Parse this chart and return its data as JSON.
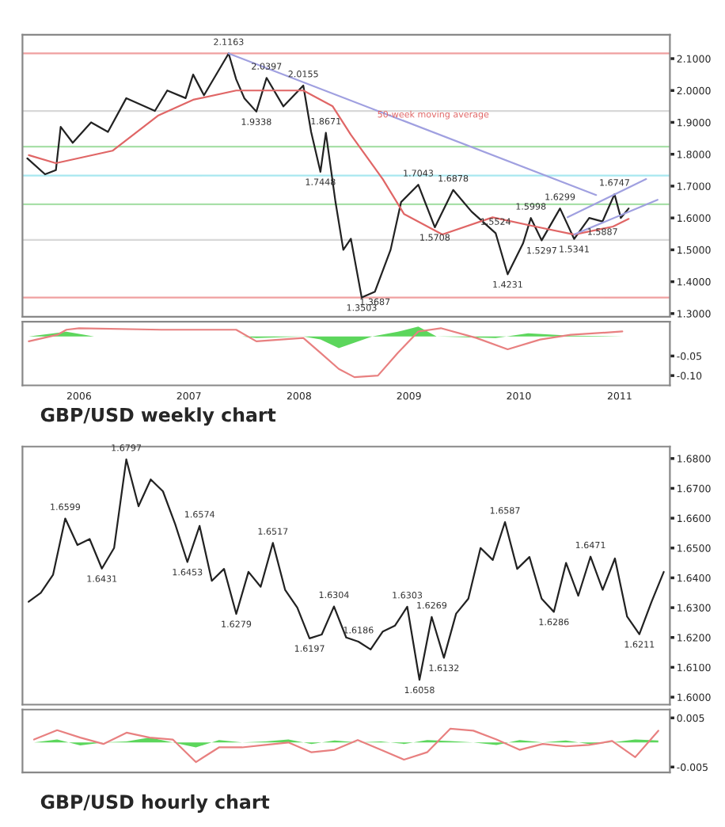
{
  "chart_data": [
    {
      "type": "line",
      "xlim": [
        "2005-12-25",
        "2011-11-15"
      ],
      "ylim": [
        1.29,
        2.175
      ],
      "yticks": [
        {
          "value": 1.3,
          "label": "1.3000"
        },
        {
          "value": 1.4,
          "label": "1.4000"
        },
        {
          "value": 1.5,
          "label": "1.5000"
        },
        {
          "value": 1.6,
          "label": "1.6000"
        },
        {
          "value": 1.7,
          "label": "1.7000"
        },
        {
          "value": 1.8,
          "label": "1.8000"
        },
        {
          "value": 1.9,
          "label": "1.9000"
        },
        {
          "value": 2.0,
          "label": "2.0000"
        },
        {
          "value": 2.1,
          "label": "2.1000"
        }
      ],
      "tick_labels": "y",
      "grid": false,
      "ref_lines": [
        {
          "axis": "y",
          "value": 2.1163,
          "color": "#f0a0a0"
        },
        {
          "axis": "y",
          "value": 1.9355,
          "color": "#d8d8d8"
        },
        {
          "axis": "y",
          "value": 1.8237,
          "color": "#a8e0a8"
        },
        {
          "axis": "y",
          "value": 1.7333,
          "color": "#a8e8f0"
        },
        {
          "axis": "y",
          "value": 1.6429,
          "color": "#a8e0a8"
        },
        {
          "axis": "y",
          "value": 1.5311,
          "color": "#d8d8d8"
        },
        {
          "axis": "y",
          "value": 1.3503,
          "color": "#f0a0a0"
        }
      ],
      "series": [
        {
          "color": "#222222",
          "x": [
            "2006-01-10",
            "2006-03-10",
            "2006-04-15",
            "2006-05-01",
            "2006-06-10",
            "2006-08-10",
            "2006-10-05",
            "2006-12-05",
            "2007-03-10",
            "2007-04-20",
            "2007-06-20",
            "2007-07-15",
            "2007-08-20",
            "2007-11-10",
            "2007-12-05",
            "2008-01-01",
            "2008-02-10",
            "2008-03-15",
            "2008-05-10",
            "2008-07-15",
            "2008-08-10",
            "2008-09-10",
            "2008-09-28",
            "2008-10-30",
            "2008-11-25",
            "2008-12-20",
            "2009-01-25",
            "2009-03-10",
            "2009-05-01",
            "2009-06-05",
            "2009-08-01",
            "2009-09-25",
            "2009-11-25",
            "2010-01-25",
            "2010-04-15",
            "2010-05-25",
            "2010-07-15",
            "2010-08-10",
            "2010-09-15",
            "2010-11-15",
            "2011-01-01",
            "2011-02-20",
            "2011-04-05",
            "2011-05-15",
            "2011-06-05",
            "2011-07-01"
          ],
          "values": [
            1.787,
            1.737,
            1.75,
            1.886,
            1.836,
            1.9,
            1.87,
            1.976,
            1.936,
            2.0,
            1.976,
            2.05,
            1.985,
            2.1163,
            2.035,
            1.976,
            1.9338,
            2.0397,
            1.95,
            2.0155,
            1.87,
            1.7448,
            1.8671,
            1.65,
            1.5,
            1.535,
            1.3503,
            1.3687,
            1.5,
            1.65,
            1.7043,
            1.5708,
            1.6878,
            1.62,
            1.5524,
            1.4231,
            1.52,
            1.5998,
            1.5297,
            1.6299,
            1.5341,
            1.6,
            1.5887,
            1.6747,
            1.6,
            1.63
          ]
        },
        {
          "name": "50-week moving average",
          "color": "#e06666",
          "x": [
            "2006-01-15",
            "2006-04-15",
            "2006-10-20",
            "2007-03-20",
            "2007-07-15",
            "2007-12-05",
            "2008-07-15",
            "2008-10-20",
            "2008-12-20",
            "2009-04-05",
            "2009-06-15",
            "2009-10-20",
            "2010-04-05",
            "2010-08-25",
            "2011-01-01",
            "2011-05-10",
            "2011-07-01"
          ],
          "values": [
            1.797,
            1.772,
            1.811,
            1.921,
            1.971,
            2.0,
            2.0,
            1.951,
            1.861,
            1.722,
            1.612,
            1.548,
            1.602,
            1.573,
            1.548,
            1.573,
            1.597
          ]
        },
        {
          "color": "#a0a0e0",
          "x": [
            "2007-11-10",
            "2011-03-15"
          ],
          "values": [
            2.1163,
            1.672
          ]
        },
        {
          "color": "#a0a0e0",
          "x": [
            "2010-12-10",
            "2011-08-28"
          ],
          "values": [
            1.602,
            1.722
          ]
        },
        {
          "color": "#a0a0e0",
          "x": [
            "2011-01-01",
            "2011-10-05"
          ],
          "values": [
            1.548,
            1.657
          ]
        }
      ],
      "annotations": [
        {
          "text": "2.1163",
          "x": "2007-11-10",
          "y": 2.1163
        },
        {
          "text": "1.9338",
          "x": "2008-02-10",
          "y": 1.9338
        },
        {
          "text": "2.0397",
          "x": "2008-03-15",
          "y": 2.0397
        },
        {
          "text": "2.0155",
          "x": "2008-07-15",
          "y": 2.0155
        },
        {
          "text": "1.7448",
          "x": "2008-09-10",
          "y": 1.7448
        },
        {
          "text": "1.8671",
          "x": "2008-09-28",
          "y": 1.8671
        },
        {
          "text": "1.3503",
          "x": "2009-01-25",
          "y": 1.3503
        },
        {
          "text": "1.3687",
          "x": "2009-03-10",
          "y": 1.3687
        },
        {
          "text": "1.7043",
          "x": "2009-08-01",
          "y": 1.7043
        },
        {
          "text": "1.5708",
          "x": "2009-09-25",
          "y": 1.5708
        },
        {
          "text": "1.6878",
          "x": "2009-11-25",
          "y": 1.6878
        },
        {
          "text": "1.5524",
          "x": "2010-04-15",
          "y": 1.5524
        },
        {
          "text": "1.4231",
          "x": "2010-05-25",
          "y": 1.4231
        },
        {
          "text": "1.5998",
          "x": "2010-08-10",
          "y": 1.5998
        },
        {
          "text": "1.5297",
          "x": "2010-09-15",
          "y": 1.5297
        },
        {
          "text": "1.6299",
          "x": "2010-11-15",
          "y": 1.6299
        },
        {
          "text": "1.5341",
          "x": "2011-01-01",
          "y": 1.5341
        },
        {
          "text": "1.5887",
          "x": "2011-04-05",
          "y": 1.5887
        },
        {
          "text": "1.6747",
          "x": "2011-05-15",
          "y": 1.6747
        }
      ]
    },
    {
      "type": "line",
      "xlim": [
        "2005-12-25",
        "2011-11-15"
      ],
      "xticks": [
        {
          "value": "2006-07-01",
          "label": "2006"
        },
        {
          "value": "2007-07-01",
          "label": "2007"
        },
        {
          "value": "2008-07-01",
          "label": "2008"
        },
        {
          "value": "2009-07-01",
          "label": "2009"
        },
        {
          "value": "2010-07-01",
          "label": "2010"
        },
        {
          "value": "2011-06-01",
          "label": "2011"
        }
      ],
      "ylim": [
        -0.125,
        0.0375
      ],
      "yticks": [
        {
          "value": -0.1,
          "label": "-0.10"
        },
        {
          "value": -0.05,
          "label": "-0.05"
        }
      ],
      "grid": false,
      "series": [
        {
          "type": "area",
          "color": "#33cc33",
          "x": [
            "2006-01-15",
            "2006-05-20",
            "2006-08-20",
            "2007-12-25",
            "2008-02-10",
            "2008-07-15",
            "2008-09-10",
            "2008-11-10",
            "2009-03-01",
            "2009-05-25",
            "2009-08-01",
            "2009-10-01",
            "2010-04-15",
            "2010-08-01",
            "2010-12-20",
            "2011-06-10"
          ],
          "values": [
            0,
            0.012,
            0,
            0,
            -0.004,
            0,
            -0.008,
            -0.03,
            0,
            0.012,
            0.025,
            0,
            -0.004,
            0.008,
            0.002,
            0
          ]
        },
        {
          "color": "#e88080",
          "x": [
            "2006-01-15",
            "2006-04-20",
            "2006-05-20",
            "2006-07-01",
            "2007-04-01",
            "2007-12-05",
            "2008-02-10",
            "2008-07-15",
            "2008-09-10",
            "2008-11-10",
            "2009-01-01",
            "2009-03-20",
            "2009-05-25",
            "2009-08-01",
            "2009-10-15",
            "2010-02-10",
            "2010-05-25",
            "2010-09-10",
            "2010-12-20",
            "2011-06-10"
          ],
          "values": [
            -0.0125,
            0.004,
            0.017,
            0.021,
            0.017,
            0.017,
            -0.0125,
            -0.004,
            -0.042,
            -0.083,
            -0.104,
            -0.1,
            -0.042,
            0.0125,
            0.021,
            -0.004,
            -0.033,
            -0.008,
            0.004,
            0.0125
          ]
        }
      ],
      "annotations": [
        "GBP/USD weekly chart"
      ]
    },
    {
      "type": "line",
      "categories": [
        null,
        null,
        null,
        null,
        null,
        null,
        null,
        null,
        null,
        null,
        null,
        null,
        null,
        null,
        null,
        null,
        null,
        null,
        null,
        null,
        null,
        null,
        null,
        null,
        null,
        null,
        null,
        null,
        null,
        null,
        null,
        null,
        null,
        null,
        null,
        null,
        null,
        null,
        null,
        null,
        null,
        null,
        null,
        null,
        null,
        null,
        null,
        null,
        null,
        null,
        null,
        null,
        null
      ],
      "ylim": [
        1.5975,
        1.684
      ],
      "yticks": [
        {
          "value": 1.6,
          "label": "1.6000"
        },
        {
          "value": 1.61,
          "label": "1.6100"
        },
        {
          "value": 1.62,
          "label": "1.6200"
        },
        {
          "value": 1.63,
          "label": "1.6300"
        },
        {
          "value": 1.64,
          "label": "1.6400"
        },
        {
          "value": 1.65,
          "label": "1.6500"
        },
        {
          "value": 1.66,
          "label": "1.6600"
        },
        {
          "value": 1.67,
          "label": "1.6700"
        },
        {
          "value": 1.68,
          "label": "1.6800"
        }
      ],
      "grid": false,
      "series": [
        {
          "color": "#222222",
          "values": [
            1.632,
            1.635,
            1.641,
            1.6599,
            1.651,
            1.653,
            1.6431,
            1.65,
            1.6797,
            1.664,
            1.673,
            1.669,
            1.658,
            1.6453,
            1.6574,
            1.639,
            1.643,
            1.6279,
            1.642,
            1.637,
            1.6517,
            1.636,
            1.63,
            1.6197,
            1.621,
            1.6304,
            1.62,
            1.6186,
            1.616,
            1.622,
            1.624,
            1.6303,
            1.6058,
            1.6269,
            1.6132,
            1.628,
            1.633,
            1.65,
            1.646,
            1.6587,
            1.643,
            1.647,
            1.633,
            1.6286,
            1.645,
            1.634,
            1.6471,
            1.636,
            1.6465,
            1.627,
            1.6211,
            1.632,
            1.642
          ]
        }
      ],
      "annotations": [
        {
          "text": "1.6599",
          "y": 1.6599
        },
        {
          "text": "1.6431",
          "y": 1.6431
        },
        {
          "text": "1.6797",
          "y": 1.6797
        },
        {
          "text": "1.6453",
          "y": 1.6453
        },
        {
          "text": "1.6574",
          "y": 1.6574
        },
        {
          "text": "1.6279",
          "y": 1.6279
        },
        {
          "text": "1.6517",
          "y": 1.6517
        },
        {
          "text": "1.6197",
          "y": 1.6197
        },
        {
          "text": "1.6304",
          "y": 1.6304
        },
        {
          "text": "1.6186",
          "y": 1.6186
        },
        {
          "text": "1.6303",
          "y": 1.6303
        },
        {
          "text": "1.6058",
          "y": 1.6058
        },
        {
          "text": "1.6269",
          "y": 1.6269
        },
        {
          "text": "1.6132",
          "y": 1.6132
        },
        {
          "text": "1.6587",
          "y": 1.6587
        },
        {
          "text": "1.6286",
          "y": 1.6286
        },
        {
          "text": "1.6471",
          "y": 1.6471
        },
        {
          "text": "1.6211",
          "y": 1.6211
        }
      ]
    },
    {
      "type": "line",
      "categories": [
        null,
        null,
        null,
        null,
        null,
        null,
        null,
        null,
        null,
        null,
        null,
        null,
        null,
        null,
        null,
        null,
        null,
        null,
        null,
        null,
        null,
        null,
        null,
        null,
        null,
        null,
        null,
        null
      ],
      "ylim": [
        -0.0061,
        0.0067
      ],
      "yticks": [
        {
          "value": -0.005,
          "label": "-0.005"
        },
        {
          "value": 0.005,
          "label": "0.005"
        }
      ],
      "grid": false,
      "series": [
        {
          "type": "area",
          "color": "#33cc33",
          "values": [
            0,
            0.0006,
            -0.0006,
            0,
            0.0002,
            0.001,
            0,
            -0.001,
            0.0005,
            0,
            0.0002,
            0.0006,
            -0.0003,
            0.0004,
            0,
            0.0002,
            -0.0003,
            0.0005,
            0.0003,
            0,
            -0.0005,
            0.0005,
            0,
            0.0004,
            -0.0003,
            0,
            0.0006,
            0.0004
          ]
        },
        {
          "color": "#e88080",
          "values": [
            0.0006,
            0.0025,
            0.001,
            -0.0003,
            0.002,
            0.001,
            0.0006,
            -0.004,
            -0.001,
            -0.001,
            -0.0005,
            0,
            -0.002,
            -0.0015,
            0.0005,
            -0.0015,
            -0.0035,
            -0.002,
            0.0028,
            0.0024,
            0.0006,
            -0.0015,
            -0.0003,
            -0.0008,
            -0.0005,
            0.0003,
            -0.003,
            0.0024
          ]
        }
      ],
      "annotations": [
        "GBP/USD hourly chart"
      ]
    }
  ]
}
